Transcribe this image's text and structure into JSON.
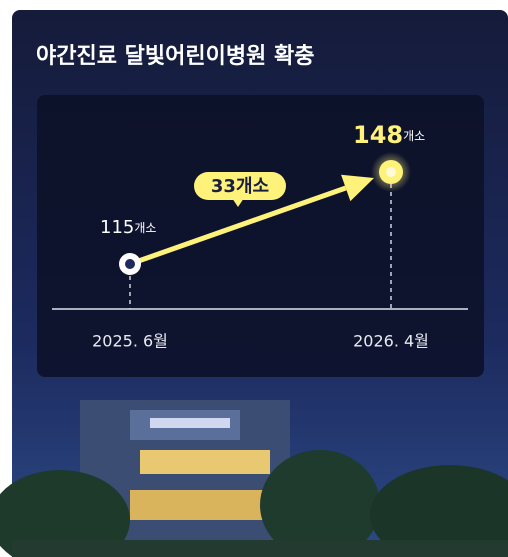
{
  "chart_data": {
    "type": "line",
    "title": "야간진료 달빛어린이병원 확충",
    "categories": [
      "2025. 6월",
      "2026. 4월"
    ],
    "values": [
      115,
      148
    ],
    "unit": "개소",
    "annotation": "33개소",
    "color": "#fff27a"
  }
}
